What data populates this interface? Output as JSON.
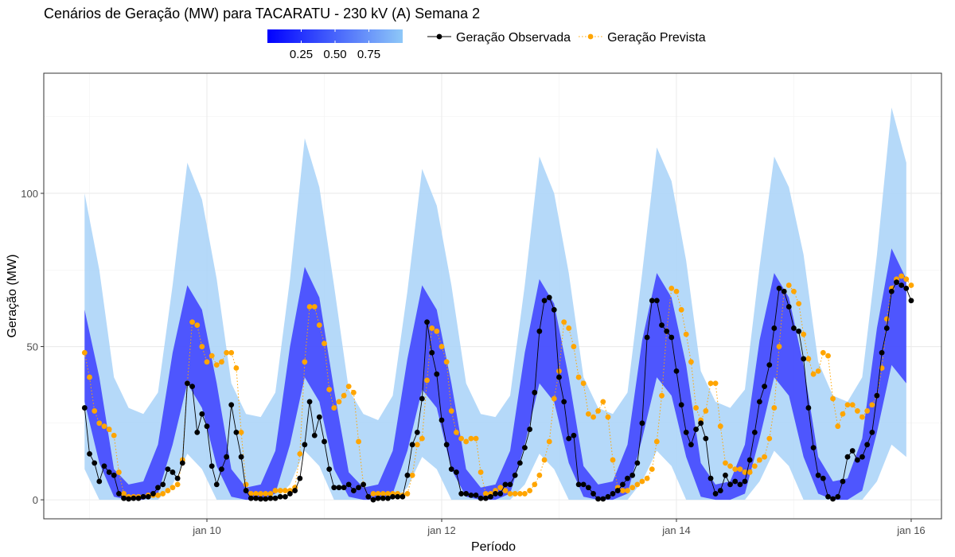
{
  "chart_data": {
    "type": "line",
    "title": "Cenários de Geração (MW) para TACARATU - 230 kV (A) Semana 2",
    "xlabel": "Período",
    "ylabel": "Geração (MW)",
    "xlim": [
      8.61,
      16.258
    ],
    "xticks": [
      {
        "value": 10,
        "label": "jan 10"
      },
      {
        "value": 12,
        "label": "jan 12"
      },
      {
        "value": 14,
        "label": "jan 14"
      },
      {
        "value": 16,
        "label": "jan 16"
      }
    ],
    "xminor": [
      9,
      11,
      13,
      15
    ],
    "ylim": [
      -6.2,
      139.2
    ],
    "yticks": [
      0,
      50,
      100
    ],
    "yminor": [
      25,
      75,
      125
    ],
    "grid": true,
    "legend": "top",
    "x": [
      8.958,
      9,
      9.042,
      9.083,
      9.125,
      9.167,
      9.208,
      9.25,
      9.292,
      9.333,
      9.375,
      9.417,
      9.458,
      9.5,
      9.542,
      9.583,
      9.625,
      9.667,
      9.708,
      9.75,
      9.792,
      9.833,
      9.875,
      9.917,
      9.958,
      10,
      10.042,
      10.083,
      10.125,
      10.167,
      10.208,
      10.25,
      10.292,
      10.333,
      10.375,
      10.417,
      10.458,
      10.5,
      10.542,
      10.583,
      10.625,
      10.667,
      10.708,
      10.75,
      10.792,
      10.833,
      10.875,
      10.917,
      10.958,
      11,
      11.042,
      11.083,
      11.125,
      11.167,
      11.208,
      11.25,
      11.292,
      11.333,
      11.375,
      11.417,
      11.458,
      11.5,
      11.542,
      11.583,
      11.625,
      11.667,
      11.708,
      11.75,
      11.792,
      11.833,
      11.875,
      11.917,
      11.958,
      12,
      12.042,
      12.083,
      12.125,
      12.167,
      12.208,
      12.25,
      12.292,
      12.333,
      12.375,
      12.417,
      12.458,
      12.5,
      12.542,
      12.583,
      12.625,
      12.667,
      12.708,
      12.75,
      12.792,
      12.833,
      12.875,
      12.917,
      12.958,
      13,
      13.042,
      13.083,
      13.125,
      13.167,
      13.208,
      13.25,
      13.292,
      13.333,
      13.375,
      13.417,
      13.458,
      13.5,
      13.542,
      13.583,
      13.625,
      13.667,
      13.708,
      13.75,
      13.792,
      13.833,
      13.875,
      13.917,
      13.958,
      14,
      14.042,
      14.083,
      14.125,
      14.167,
      14.208,
      14.25,
      14.292,
      14.333,
      14.375,
      14.417,
      14.458,
      14.5,
      14.542,
      14.583,
      14.625,
      14.667,
      14.708,
      14.75,
      14.792,
      14.833,
      14.875,
      14.917,
      14.958,
      15,
      15.042,
      15.083,
      15.125,
      15.167,
      15.208,
      15.25,
      15.292,
      15.333,
      15.375,
      15.417,
      15.458,
      15.5,
      15.542,
      15.583,
      15.625,
      15.667,
      15.708,
      15.75,
      15.792,
      15.833,
      15.875,
      15.917,
      15.958,
      16
    ],
    "series": [
      {
        "name": "Geração Observada",
        "color": "#000000",
        "line_style": "solid",
        "values": [
          30,
          15,
          12,
          6,
          11,
          9,
          8,
          2,
          0.5,
          0.3,
          0.5,
          0.5,
          1,
          1,
          2,
          4,
          5,
          10,
          9,
          7,
          12,
          38,
          37,
          22,
          28,
          24,
          11,
          5,
          10,
          14,
          31,
          22,
          14,
          3,
          0.5,
          0.5,
          0.3,
          0.3,
          0.5,
          0.5,
          1,
          1,
          2,
          3,
          7,
          18,
          32,
          21,
          27,
          19,
          10,
          4,
          4,
          4,
          5,
          3,
          4,
          5,
          1,
          0,
          0.5,
          0.5,
          0.5,
          1,
          1,
          1,
          8,
          18,
          22,
          33,
          58,
          48,
          41,
          26,
          18,
          10,
          9,
          2,
          2,
          1.5,
          1.5,
          0.5,
          0.5,
          1,
          2,
          2,
          5,
          5,
          8,
          12,
          17,
          23,
          35,
          55,
          65,
          66,
          62,
          40,
          32,
          20,
          21,
          5,
          5,
          4,
          2,
          0.3,
          0.3,
          1,
          2,
          3,
          5,
          7,
          8,
          12,
          25,
          53,
          65,
          65,
          57,
          55,
          53,
          42,
          31,
          22,
          18,
          23,
          25,
          20,
          7,
          2,
          3,
          8,
          5,
          6,
          5,
          6,
          13,
          22,
          32,
          37,
          44,
          56,
          69,
          68,
          63,
          56,
          55,
          46,
          30,
          17,
          8,
          7,
          1,
          0.3,
          1,
          6,
          14,
          16,
          13,
          14,
          18,
          22,
          34,
          48,
          56,
          68,
          71,
          70,
          69,
          65
        ]
      },
      {
        "name": "Geração Prevista",
        "color": "#FFA500",
        "line_style": "dotted",
        "values": [
          48,
          40,
          29,
          25,
          24,
          23,
          21,
          9,
          2,
          1,
          1,
          1,
          1,
          1.5,
          1.5,
          1.5,
          2,
          3,
          4,
          5,
          13,
          38,
          58,
          57,
          50,
          45,
          47,
          44,
          45,
          48,
          48,
          43,
          22,
          5,
          2,
          2,
          2,
          2,
          2,
          3,
          3,
          3,
          3,
          4,
          15,
          45,
          63,
          63,
          57,
          51,
          36,
          30,
          32,
          34,
          37,
          35,
          19,
          5,
          1,
          2,
          2,
          2,
          2,
          2,
          2,
          1.5,
          2,
          8,
          18,
          20,
          39,
          56,
          55,
          50,
          45,
          29,
          22,
          20,
          19,
          20,
          20,
          9,
          2,
          2,
          3,
          4,
          3,
          2,
          2,
          2,
          2,
          3,
          5,
          8,
          13,
          19,
          33,
          42,
          58,
          56,
          50,
          40,
          38,
          28,
          27,
          29,
          32,
          27,
          13,
          4,
          3,
          3,
          4,
          5,
          6,
          7,
          10,
          19,
          34,
          55,
          69,
          68,
          62,
          54,
          45,
          30,
          26,
          29,
          38,
          38,
          24,
          12,
          11,
          10,
          10,
          9,
          9,
          11,
          13,
          14,
          20,
          30,
          50,
          68,
          70,
          68,
          64,
          54,
          46,
          41,
          42,
          48,
          47,
          33,
          24,
          28,
          31,
          31,
          29,
          27,
          29,
          31,
          34,
          43,
          59,
          69,
          72,
          73,
          72,
          70
        ]
      }
    ],
    "bands": {
      "x": [
        8.958,
        9.083,
        9.208,
        9.333,
        9.458,
        9.583,
        9.708,
        9.833,
        9.958,
        10.083,
        10.208,
        10.333,
        10.458,
        10.583,
        10.708,
        10.833,
        10.958,
        11.083,
        11.208,
        11.333,
        11.458,
        11.583,
        11.708,
        11.833,
        11.958,
        12.083,
        12.208,
        12.333,
        12.458,
        12.583,
        12.708,
        12.833,
        12.958,
        13.083,
        13.208,
        13.333,
        13.458,
        13.583,
        13.708,
        13.833,
        13.958,
        14.083,
        14.208,
        14.333,
        14.458,
        14.583,
        14.708,
        14.833,
        14.958,
        15.083,
        15.208,
        15.333,
        15.458,
        15.583,
        15.708,
        15.833,
        15.958
      ],
      "levels": [
        {
          "color": "#a8d2f8",
          "upper": [
            100,
            75,
            40,
            30,
            28,
            35,
            70,
            110,
            98,
            72,
            38,
            28,
            27,
            35,
            72,
            118,
            102,
            70,
            36,
            28,
            26,
            34,
            68,
            108,
            96,
            70,
            38,
            28,
            27,
            34,
            70,
            112,
            100,
            74,
            40,
            30,
            28,
            35,
            74,
            115,
            104,
            78,
            42,
            32,
            30,
            36,
            76,
            112,
            102,
            80,
            45,
            34,
            32,
            40,
            80,
            128,
            110
          ],
          "lower": [
            10,
            0,
            0,
            0,
            0,
            0,
            5,
            15,
            10,
            0,
            0,
            0,
            0,
            0,
            5,
            16,
            11,
            0,
            0,
            0,
            0,
            0,
            4,
            14,
            10,
            0,
            0,
            0,
            0,
            0,
            5,
            15,
            10,
            0,
            0,
            0,
            0,
            0,
            6,
            16,
            11,
            0,
            0,
            0,
            0,
            0,
            6,
            16,
            11,
            0,
            0,
            0,
            0,
            0,
            6,
            18,
            14
          ]
        },
        {
          "color": "#3535ff",
          "upper": [
            62,
            40,
            10,
            5,
            6,
            18,
            48,
            70,
            62,
            38,
            10,
            4,
            5,
            16,
            50,
            76,
            66,
            36,
            9,
            4,
            5,
            16,
            46,
            70,
            62,
            38,
            10,
            4,
            5,
            16,
            48,
            72,
            64,
            40,
            11,
            5,
            6,
            18,
            52,
            74,
            66,
            44,
            12,
            5,
            6,
            18,
            52,
            74,
            66,
            44,
            14,
            6,
            7,
            20,
            56,
            82,
            72
          ],
          "lower": [
            32,
            12,
            1,
            0,
            0,
            2,
            18,
            38,
            30,
            11,
            1,
            0,
            0,
            2,
            18,
            40,
            32,
            10,
            1,
            0,
            0,
            2,
            16,
            36,
            30,
            10,
            1,
            0,
            0,
            2,
            18,
            38,
            32,
            12,
            1,
            0,
            0,
            2,
            20,
            40,
            34,
            14,
            1,
            0,
            0,
            2,
            20,
            40,
            34,
            14,
            2,
            0,
            0,
            3,
            22,
            44,
            38
          ]
        }
      ]
    },
    "colorbar": {
      "lim": [
        0,
        1
      ],
      "colors": [
        "#0000ff",
        "#8ec8f8"
      ],
      "ticks": [
        0.25,
        {
          "value": 0.5,
          "label": "0.50"
        },
        0.75
      ]
    }
  }
}
